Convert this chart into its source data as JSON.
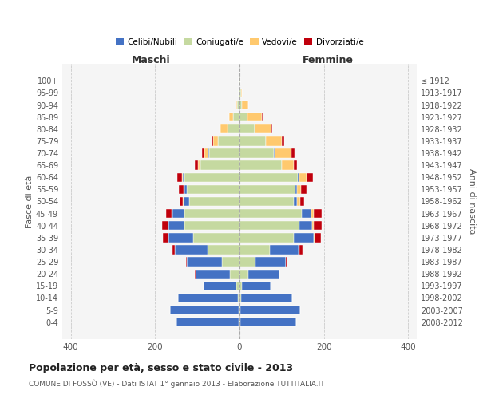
{
  "age_groups": [
    "100+",
    "95-99",
    "90-94",
    "85-89",
    "80-84",
    "75-79",
    "70-74",
    "65-69",
    "60-64",
    "55-59",
    "50-54",
    "45-49",
    "40-44",
    "35-39",
    "30-34",
    "25-29",
    "20-24",
    "15-19",
    "10-14",
    "5-9",
    "0-4"
  ],
  "birth_years": [
    "≤ 1912",
    "1913-1917",
    "1918-1922",
    "1923-1927",
    "1928-1932",
    "1933-1937",
    "1938-1942",
    "1943-1947",
    "1948-1952",
    "1953-1957",
    "1958-1962",
    "1963-1967",
    "1968-1972",
    "1973-1977",
    "1978-1982",
    "1983-1987",
    "1988-1992",
    "1993-1997",
    "1998-2002",
    "2003-2007",
    "2008-2012"
  ],
  "male_coniugati": [
    1,
    2,
    5,
    15,
    28,
    52,
    72,
    92,
    130,
    125,
    120,
    130,
    130,
    110,
    75,
    42,
    22,
    8,
    3,
    2,
    2
  ],
  "male_celibi": [
    0,
    0,
    0,
    0,
    0,
    0,
    2,
    2,
    4,
    5,
    12,
    28,
    38,
    58,
    78,
    82,
    82,
    78,
    142,
    162,
    148
  ],
  "male_vedovi": [
    0,
    0,
    2,
    10,
    18,
    10,
    10,
    5,
    3,
    2,
    2,
    2,
    1,
    1,
    0,
    0,
    0,
    0,
    0,
    0,
    0
  ],
  "male_divorziati": [
    0,
    0,
    0,
    0,
    2,
    5,
    5,
    7,
    10,
    12,
    8,
    15,
    15,
    12,
    5,
    2,
    1,
    0,
    0,
    0,
    0
  ],
  "female_coniugati": [
    1,
    3,
    6,
    18,
    35,
    62,
    82,
    100,
    138,
    132,
    128,
    148,
    142,
    128,
    72,
    38,
    20,
    6,
    3,
    2,
    2
  ],
  "female_celibi": [
    0,
    0,
    0,
    0,
    0,
    0,
    1,
    1,
    3,
    4,
    8,
    22,
    30,
    48,
    68,
    72,
    74,
    68,
    122,
    142,
    132
  ],
  "female_vedovi": [
    1,
    3,
    15,
    35,
    40,
    38,
    40,
    28,
    18,
    10,
    8,
    6,
    4,
    2,
    1,
    0,
    0,
    0,
    0,
    0,
    0
  ],
  "female_divorziati": [
    0,
    0,
    0,
    1,
    2,
    5,
    8,
    8,
    15,
    12,
    10,
    18,
    18,
    15,
    8,
    3,
    1,
    0,
    0,
    0,
    0
  ],
  "color_celibi": "#4472c4",
  "color_coniugati": "#c5d9a0",
  "color_vedovi": "#ffc96e",
  "color_divorziati": "#c0000c",
  "title_main": "Popolazione per età, sesso e stato civile - 2013",
  "title_sub": "COMUNE DI FOSSÒ (VE) - Dati ISTAT 1° gennaio 2013 - Elaborazione TUTTITALIA.IT",
  "xlabel_left": "Maschi",
  "xlabel_right": "Femmine",
  "ylabel_left": "Fasce di età",
  "ylabel_right": "Anni di nascita",
  "xlim": 420,
  "bg_color": "#f5f5f5",
  "plot_bg": "#f5f5f5",
  "grid_color": "#cccccc"
}
